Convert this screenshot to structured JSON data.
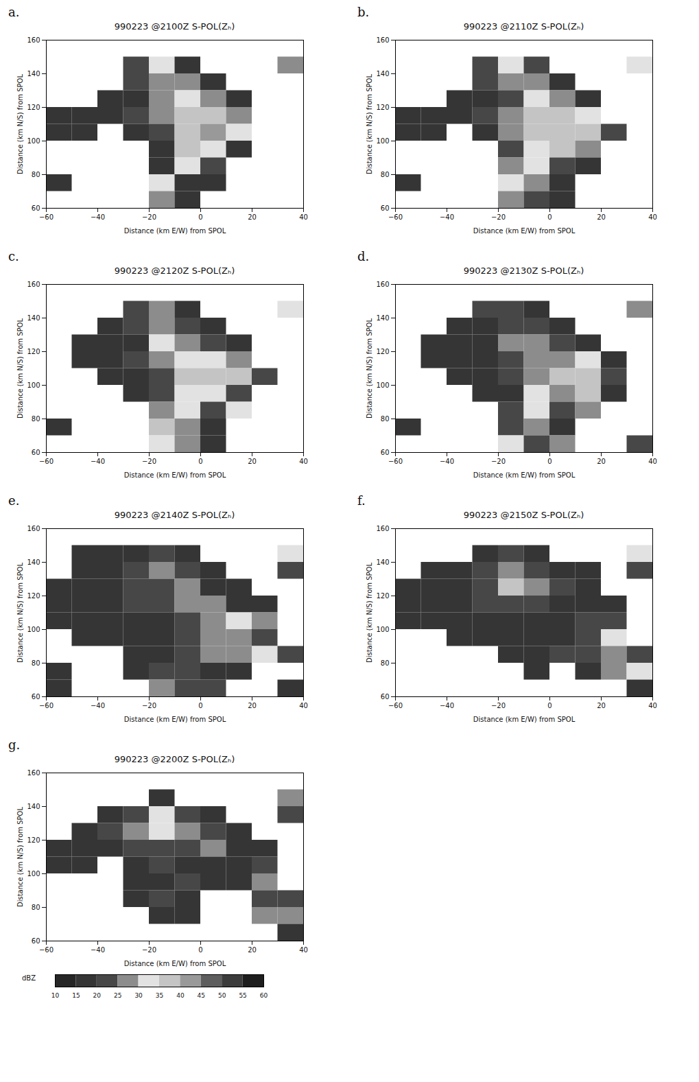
{
  "chart_data": [
    {
      "type": "heatmap",
      "panel": "a.",
      "title": "990223 @2100Z  S-POL(Zₕ)",
      "x_label": "Distance (km E/W) from SPOL",
      "y_label": "Distance (km N/S) from SPOL",
      "xlim": [
        -60,
        40
      ],
      "ylim": [
        60,
        160
      ],
      "xticks": [
        -60,
        -40,
        -20,
        0,
        20,
        40
      ],
      "yticks": [
        60,
        80,
        100,
        120,
        140,
        160
      ],
      "x": [
        -55,
        -45,
        -35,
        -25,
        -15,
        -5,
        5,
        15,
        25,
        35
      ],
      "y": [
        155,
        145,
        135,
        125,
        115,
        105,
        95,
        85,
        75,
        65
      ],
      "cells": [
        [
          null,
          null,
          null,
          null,
          null,
          null,
          null,
          null,
          null,
          null
        ],
        [
          null,
          null,
          null,
          22,
          32,
          18,
          null,
          null,
          null,
          25
        ],
        [
          null,
          null,
          null,
          20,
          28,
          25,
          15,
          null,
          null,
          null
        ],
        [
          null,
          null,
          18,
          18,
          25,
          32,
          25,
          15,
          null,
          null
        ],
        [
          18,
          18,
          18,
          20,
          28,
          38,
          35,
          28,
          null,
          null
        ],
        [
          15,
          15,
          null,
          15,
          22,
          35,
          40,
          30,
          null,
          null
        ],
        [
          null,
          null,
          null,
          null,
          18,
          35,
          30,
          15,
          null,
          null
        ],
        [
          null,
          null,
          null,
          null,
          15,
          30,
          20,
          null,
          null,
          null
        ],
        [
          15,
          null,
          null,
          null,
          30,
          18,
          15,
          null,
          null,
          null
        ],
        [
          null,
          null,
          null,
          null,
          25,
          15,
          null,
          null,
          null,
          null
        ]
      ]
    },
    {
      "type": "heatmap",
      "panel": "b.",
      "title": "990223 @2110Z  S-POL(Zₕ)",
      "x_label": "Distance (km E/W) from SPOL",
      "y_label": "Distance (km N/S) from SPOL",
      "xlim": [
        -60,
        40
      ],
      "ylim": [
        60,
        160
      ],
      "xticks": [
        -60,
        -40,
        -20,
        0,
        20,
        40
      ],
      "yticks": [
        60,
        80,
        100,
        120,
        140,
        160
      ],
      "x": [
        -55,
        -45,
        -35,
        -25,
        -15,
        -5,
        5,
        15,
        25,
        35
      ],
      "y": [
        155,
        145,
        135,
        125,
        115,
        105,
        95,
        85,
        75,
        65
      ],
      "cells": [
        [
          null,
          null,
          null,
          null,
          null,
          null,
          null,
          null,
          null,
          null
        ],
        [
          null,
          null,
          null,
          22,
          32,
          20,
          null,
          null,
          null,
          30
        ],
        [
          null,
          null,
          null,
          20,
          28,
          25,
          15,
          null,
          null,
          null
        ],
        [
          null,
          null,
          18,
          18,
          22,
          30,
          28,
          18,
          null,
          null
        ],
        [
          15,
          18,
          18,
          20,
          25,
          35,
          35,
          30,
          null,
          null
        ],
        [
          15,
          15,
          null,
          15,
          28,
          35,
          38,
          35,
          20,
          null
        ],
        [
          null,
          null,
          null,
          null,
          20,
          30,
          35,
          25,
          null,
          null
        ],
        [
          null,
          null,
          null,
          null,
          25,
          30,
          22,
          15,
          null,
          null
        ],
        [
          15,
          null,
          null,
          null,
          30,
          25,
          18,
          null,
          null,
          null
        ],
        [
          null,
          null,
          null,
          null,
          25,
          20,
          15,
          null,
          null,
          null
        ]
      ]
    },
    {
      "type": "heatmap",
      "panel": "c.",
      "title": "990223 @2120Z  S-POL(Zₕ)",
      "x_label": "Distance (km E/W) from SPOL",
      "y_label": "Distance (km N/S) from SPOL",
      "xlim": [
        -60,
        40
      ],
      "ylim": [
        60,
        160
      ],
      "xticks": [
        -60,
        -40,
        -20,
        0,
        20,
        40
      ],
      "yticks": [
        60,
        80,
        100,
        120,
        140,
        160
      ],
      "x": [
        -55,
        -45,
        -35,
        -25,
        -15,
        -5,
        5,
        15,
        25,
        35
      ],
      "y": [
        155,
        145,
        135,
        125,
        115,
        105,
        95,
        85,
        75,
        65
      ],
      "cells": [
        [
          null,
          null,
          null,
          null,
          null,
          null,
          null,
          null,
          null,
          null
        ],
        [
          null,
          null,
          null,
          20,
          25,
          15,
          null,
          null,
          null,
          30
        ],
        [
          null,
          null,
          15,
          20,
          28,
          22,
          15,
          null,
          null,
          null
        ],
        [
          null,
          18,
          18,
          18,
          30,
          25,
          22,
          15,
          null,
          null
        ],
        [
          null,
          15,
          15,
          20,
          25,
          30,
          32,
          25,
          null,
          null
        ],
        [
          null,
          null,
          15,
          18,
          22,
          35,
          35,
          35,
          20,
          null
        ],
        [
          null,
          null,
          null,
          15,
          20,
          32,
          30,
          22,
          null,
          null
        ],
        [
          null,
          null,
          null,
          null,
          25,
          30,
          20,
          30,
          null,
          null
        ],
        [
          15,
          null,
          null,
          null,
          35,
          28,
          18,
          null,
          null,
          null
        ],
        [
          null,
          null,
          null,
          null,
          30,
          25,
          15,
          null,
          null,
          null
        ]
      ]
    },
    {
      "type": "heatmap",
      "panel": "d.",
      "title": "990223 @2130Z  S-POL(Zₕ)",
      "x_label": "Distance (km E/W) from SPOL",
      "y_label": "Distance (km N/S) from SPOL",
      "xlim": [
        -60,
        40
      ],
      "ylim": [
        60,
        160
      ],
      "xticks": [
        -60,
        -40,
        -20,
        0,
        20,
        40
      ],
      "yticks": [
        60,
        80,
        100,
        120,
        140,
        160
      ],
      "x": [
        -55,
        -45,
        -35,
        -25,
        -15,
        -5,
        5,
        15,
        25,
        35
      ],
      "y": [
        155,
        145,
        135,
        125,
        115,
        105,
        95,
        85,
        75,
        65
      ],
      "cells": [
        [
          null,
          null,
          null,
          null,
          null,
          null,
          null,
          null,
          null,
          null
        ],
        [
          null,
          null,
          null,
          20,
          20,
          18,
          null,
          null,
          null,
          28
        ],
        [
          null,
          null,
          15,
          18,
          22,
          22,
          15,
          null,
          null,
          null
        ],
        [
          null,
          15,
          18,
          18,
          25,
          25,
          20,
          15,
          null,
          null
        ],
        [
          null,
          15,
          15,
          18,
          22,
          25,
          28,
          30,
          15,
          null
        ],
        [
          null,
          null,
          15,
          18,
          20,
          28,
          35,
          35,
          22,
          null
        ],
        [
          null,
          null,
          null,
          15,
          18,
          30,
          28,
          35,
          18,
          null
        ],
        [
          null,
          null,
          null,
          null,
          20,
          30,
          20,
          25,
          null,
          null
        ],
        [
          15,
          null,
          null,
          null,
          22,
          25,
          18,
          null,
          null,
          null
        ],
        [
          null,
          null,
          null,
          null,
          30,
          22,
          25,
          null,
          null,
          20
        ]
      ]
    },
    {
      "type": "heatmap",
      "panel": "e.",
      "title": "990223 @2140Z  S-POL(Zₕ)",
      "x_label": "Distance (km E/W) from SPOL",
      "y_label": "Distance (km N/S) from SPOL",
      "xlim": [
        -60,
        40
      ],
      "ylim": [
        60,
        160
      ],
      "xticks": [
        -60,
        -40,
        -20,
        0,
        20,
        40
      ],
      "yticks": [
        60,
        80,
        100,
        120,
        140,
        160
      ],
      "x": [
        -55,
        -45,
        -35,
        -25,
        -15,
        -5,
        5,
        15,
        25,
        35
      ],
      "y": [
        155,
        145,
        135,
        125,
        115,
        105,
        95,
        85,
        75,
        65
      ],
      "cells": [
        [
          null,
          null,
          null,
          null,
          null,
          null,
          null,
          null,
          null,
          null
        ],
        [
          null,
          15,
          15,
          18,
          20,
          15,
          null,
          null,
          null,
          30
        ],
        [
          null,
          15,
          18,
          20,
          28,
          22,
          15,
          null,
          null,
          20
        ],
        [
          15,
          18,
          18,
          20,
          22,
          25,
          18,
          15,
          null,
          null
        ],
        [
          15,
          18,
          18,
          20,
          20,
          25,
          25,
          18,
          15,
          null
        ],
        [
          15,
          15,
          15,
          18,
          18,
          22,
          25,
          30,
          25,
          null
        ],
        [
          null,
          15,
          15,
          15,
          18,
          22,
          28,
          25,
          20,
          null
        ],
        [
          null,
          null,
          null,
          15,
          18,
          22,
          25,
          25,
          32,
          20
        ],
        [
          15,
          null,
          null,
          15,
          22,
          20,
          18,
          15,
          null,
          null
        ],
        [
          15,
          null,
          null,
          null,
          25,
          22,
          20,
          null,
          null,
          18
        ]
      ]
    },
    {
      "type": "heatmap",
      "panel": "f.",
      "title": "990223 @2150Z  S-POL(Zₕ)",
      "x_label": "Distance (km E/W) from SPOL",
      "y_label": "Distance (km N/S) from SPOL",
      "xlim": [
        -60,
        40
      ],
      "ylim": [
        60,
        160
      ],
      "xticks": [
        -60,
        -40,
        -20,
        0,
        20,
        40
      ],
      "yticks": [
        60,
        80,
        100,
        120,
        140,
        160
      ],
      "x": [
        -55,
        -45,
        -35,
        -25,
        -15,
        -5,
        5,
        15,
        25,
        35
      ],
      "y": [
        155,
        145,
        135,
        125,
        115,
        105,
        95,
        85,
        75,
        65
      ],
      "cells": [
        [
          null,
          null,
          null,
          null,
          null,
          null,
          null,
          null,
          null,
          null
        ],
        [
          null,
          null,
          null,
          18,
          20,
          15,
          null,
          null,
          null,
          30
        ],
        [
          null,
          15,
          15,
          20,
          28,
          22,
          18,
          15,
          null,
          20
        ],
        [
          15,
          18,
          18,
          22,
          35,
          25,
          20,
          18,
          null,
          null
        ],
        [
          15,
          18,
          18,
          20,
          22,
          20,
          18,
          18,
          15,
          null
        ],
        [
          15,
          15,
          15,
          15,
          18,
          18,
          18,
          22,
          20,
          null
        ],
        [
          null,
          null,
          15,
          15,
          18,
          15,
          18,
          22,
          30,
          null
        ],
        [
          null,
          null,
          null,
          null,
          15,
          18,
          20,
          22,
          28,
          22
        ],
        [
          null,
          null,
          null,
          null,
          null,
          15,
          null,
          15,
          25,
          30
        ],
        [
          null,
          null,
          null,
          null,
          null,
          null,
          null,
          null,
          null,
          15
        ]
      ]
    },
    {
      "type": "heatmap",
      "panel": "g.",
      "title": "990223 @2200Z  S-POL(Zₕ)",
      "x_label": "Distance (km E/W) from SPOL",
      "y_label": "Distance (km N/S) from SPOL",
      "xlim": [
        -60,
        40
      ],
      "ylim": [
        60,
        160
      ],
      "xticks": [
        -60,
        -40,
        -20,
        0,
        20,
        40
      ],
      "yticks": [
        60,
        80,
        100,
        120,
        140,
        160
      ],
      "x": [
        -55,
        -45,
        -35,
        -25,
        -15,
        -5,
        5,
        15,
        25,
        35
      ],
      "y": [
        155,
        145,
        135,
        125,
        115,
        105,
        95,
        85,
        75,
        65
      ],
      "cells": [
        [
          null,
          null,
          null,
          null,
          null,
          null,
          null,
          null,
          null,
          null
        ],
        [
          null,
          null,
          null,
          null,
          18,
          null,
          null,
          null,
          null,
          25
        ],
        [
          null,
          null,
          15,
          22,
          32,
          20,
          15,
          null,
          null,
          20
        ],
        [
          null,
          18,
          20,
          25,
          32,
          25,
          20,
          18,
          null,
          null
        ],
        [
          15,
          18,
          18,
          20,
          22,
          22,
          25,
          15,
          15,
          null
        ],
        [
          18,
          15,
          null,
          15,
          20,
          18,
          15,
          18,
          20,
          null
        ],
        [
          null,
          null,
          null,
          15,
          18,
          22,
          15,
          15,
          25,
          null
        ],
        [
          null,
          null,
          null,
          15,
          20,
          18,
          null,
          null,
          22,
          20
        ],
        [
          null,
          null,
          null,
          null,
          15,
          15,
          null,
          null,
          25,
          28
        ],
        [
          null,
          null,
          null,
          null,
          null,
          null,
          null,
          null,
          null,
          15
        ]
      ]
    }
  ],
  "colorbar": {
    "label": "dBZ",
    "range": [
      10,
      60
    ],
    "ticks": [
      10,
      15,
      20,
      25,
      30,
      35,
      40,
      45,
      50,
      55,
      60
    ],
    "colors": [
      "#262626",
      "#353535",
      "#474747",
      "#8c8c8c",
      "#e2e2e2",
      "#c4c4c4",
      "#999999",
      "#5e5e5e",
      "#3c3c3c",
      "#1e1e1e"
    ]
  }
}
